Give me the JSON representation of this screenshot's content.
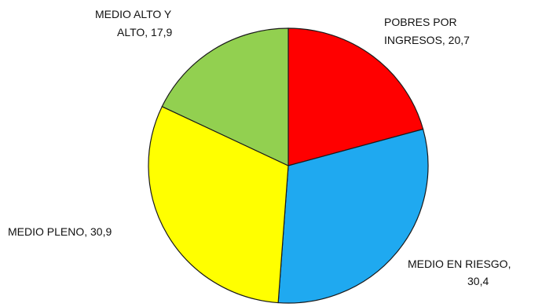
{
  "chart_data": {
    "type": "pie",
    "title": "",
    "slices": [
      {
        "label": "POBRES POR INGRESOS",
        "value": 20.7,
        "color": "#ff0000",
        "label_lines": [
          "POBRES POR",
          "INGRESOS, 20,7"
        ]
      },
      {
        "label": "MEDIO EN RIESGO",
        "value": 30.4,
        "color": "#1fa9f0",
        "label_lines": [
          "MEDIO EN RIESGO,",
          "30,4"
        ]
      },
      {
        "label": "MEDIO PLENO",
        "value": 30.9,
        "color": "#ffff00",
        "label_lines": [
          "MEDIO PLENO, 30,9"
        ]
      },
      {
        "label": "MEDIO ALTO Y ALTO",
        "value": 17.9,
        "color": "#92d050",
        "label_lines": [
          "MEDIO ALTO Y",
          "ALTO, 17,9"
        ]
      }
    ],
    "start_angle": "12 o'clock",
    "direction": "clockwise",
    "legend": "none"
  }
}
